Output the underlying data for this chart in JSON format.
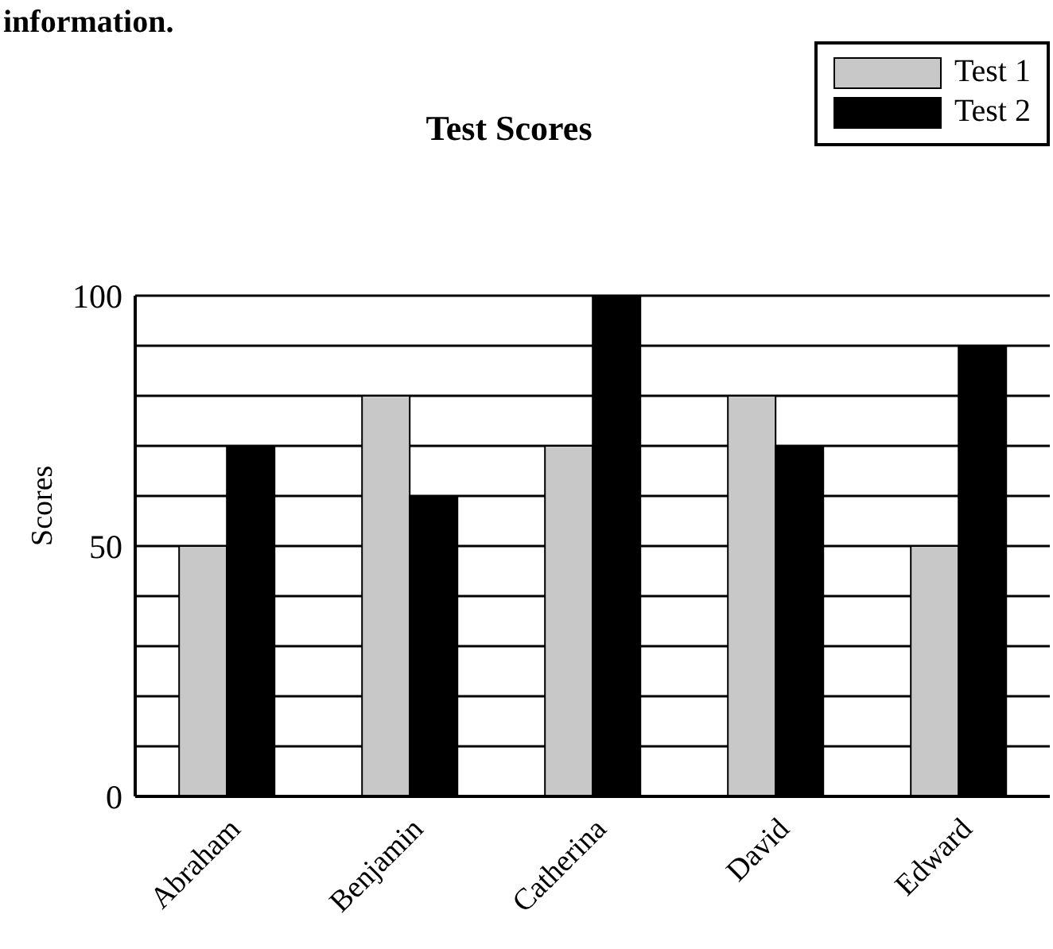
{
  "chart_data": {
    "type": "bar",
    "title": "Test Scores",
    "ylabel": "Scores",
    "annotations": [
      "information."
    ],
    "categories": [
      "Abraham",
      "Benjamin",
      "Catherina",
      "David",
      "Edward"
    ],
    "series": [
      {
        "name": "Test 1",
        "color": "#c8c8c8",
        "values": [
          50,
          80,
          70,
          80,
          50
        ]
      },
      {
        "name": "Test 2",
        "color": "#000000",
        "values": [
          70,
          60,
          100,
          70,
          90
        ]
      }
    ],
    "ylim": [
      0,
      100
    ],
    "yticks": [
      0,
      {
        "value": 10,
        "label": null
      },
      {
        "value": 20,
        "label": null
      },
      {
        "value": 30,
        "label": null
      },
      {
        "value": 40,
        "label": null
      },
      50,
      {
        "value": 60,
        "label": null
      },
      {
        "value": 70,
        "label": null
      },
      {
        "value": 80,
        "label": null
      },
      {
        "value": 90,
        "label": null
      },
      100
    ],
    "grid": "y",
    "legend": "top right"
  }
}
